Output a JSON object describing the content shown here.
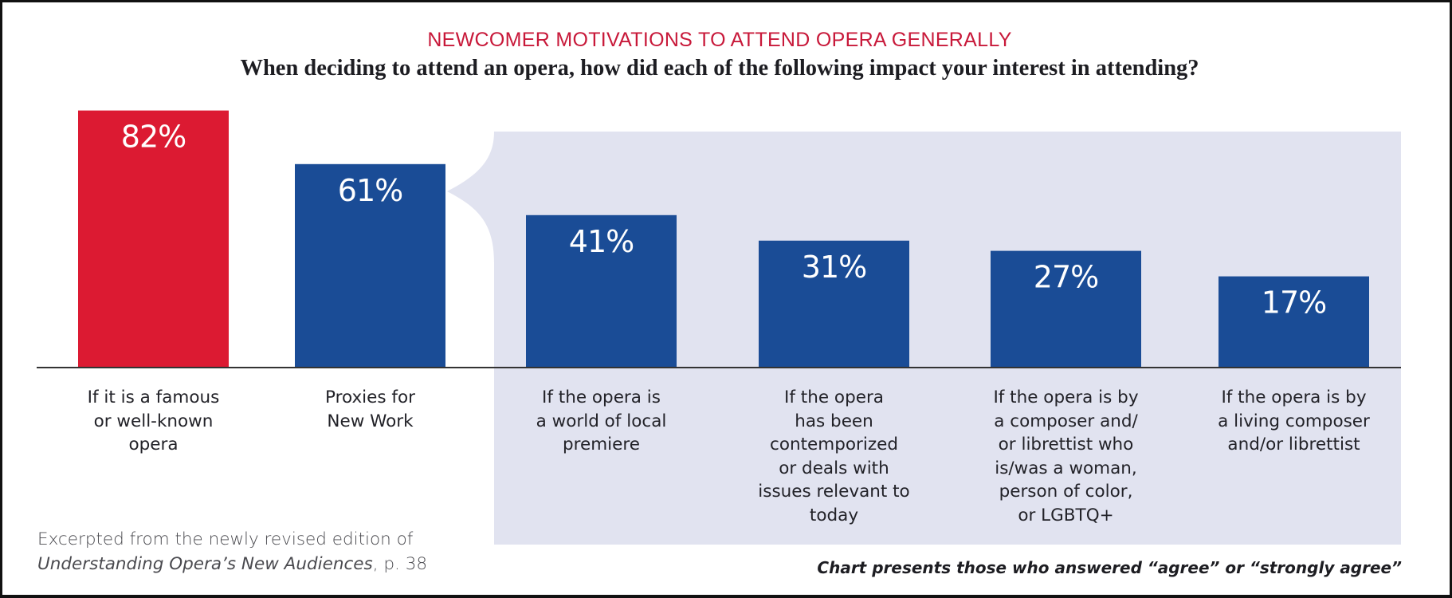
{
  "colors": {
    "highlight": "#dc1a32",
    "primary": "#1a4c96",
    "panel": "#e1e3f0",
    "axis": "#333333",
    "title": "#c8193a"
  },
  "chart_data": {
    "type": "bar",
    "title": "NEWCOMER MOTIVATIONS TO ATTEND OPERA GENERALLY",
    "subtitle": "When deciding to attend an opera, how did each of the following impact your interest in attending?",
    "xlabel": "",
    "ylabel": "",
    "unit": "%",
    "ylim": [
      0,
      100
    ],
    "grid": false,
    "categories": [
      "If it is a famous or well-known opera",
      "Proxies for New Work",
      "If the opera is a world of local premiere",
      "If the opera has been contemporized or deals with issues relevant to today",
      "If the opera is by a composer and/or librettist who is/was a woman, person of color, or LGBTQ+",
      "If the opera is by a living composer and/or librettist"
    ],
    "category_lines": [
      [
        "If it is a famous",
        "or well-known",
        "opera"
      ],
      [
        "Proxies for",
        "New Work"
      ],
      [
        "If the opera is",
        "a world of local",
        "premiere"
      ],
      [
        "If the opera",
        "has been",
        "contemporized",
        "or deals with",
        "issues relevant to",
        "today"
      ],
      [
        "If the opera is by",
        "a composer and/",
        "or librettist who",
        "is/was a woman,",
        "person of color,",
        "or LGBTQ+"
      ],
      [
        "If the opera is by",
        "a living composer",
        "and/or librettist"
      ]
    ],
    "values": [
      82,
      61,
      41,
      31,
      27,
      17
    ],
    "value_labels": [
      "82%",
      "61%",
      "41%",
      "31%",
      "27%",
      "17%"
    ],
    "bar_colors": [
      "highlight",
      "primary",
      "primary",
      "primary",
      "primary",
      "primary"
    ],
    "grouping": {
      "label": "Proxies for New Work",
      "parent_index": 1,
      "child_indices": [
        2,
        3,
        4,
        5
      ]
    }
  },
  "source": {
    "line1": "Excerpted from the newly revised edition of",
    "book_title": "Understanding Opera’s New Audiences",
    "page": ", p. 38"
  },
  "note": "Chart presents those who answered “agree” or “strongly agree”"
}
